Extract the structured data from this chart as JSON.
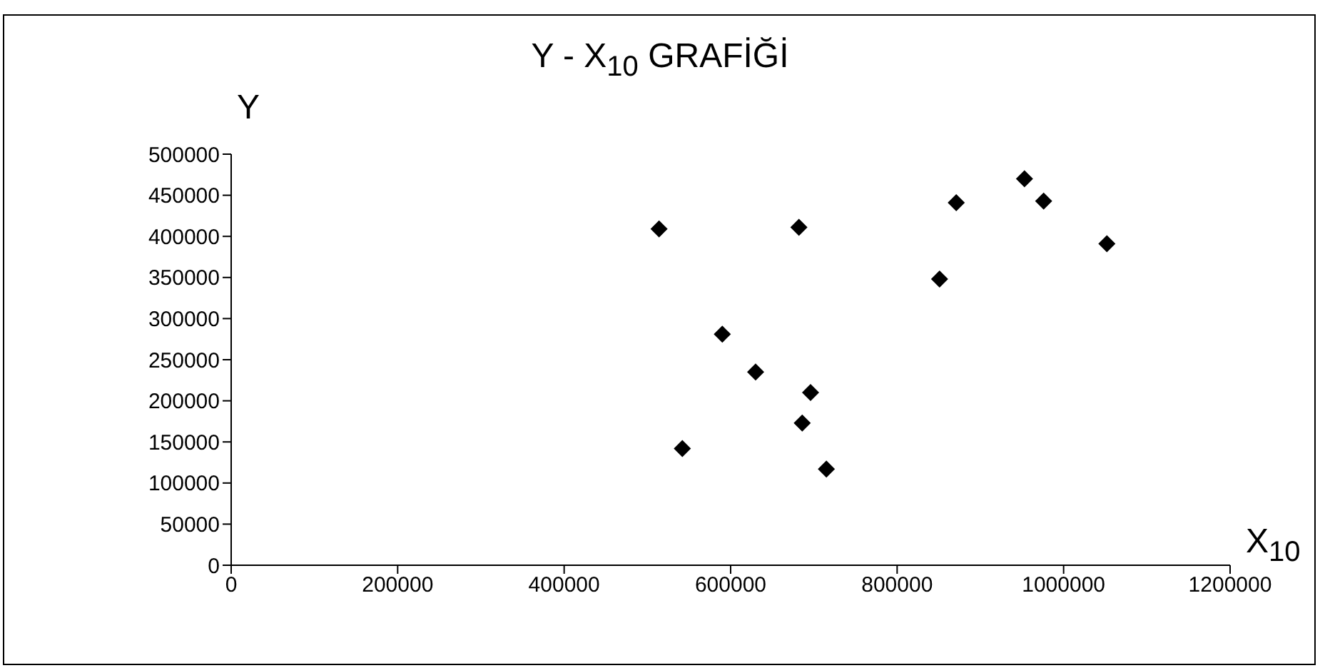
{
  "chart_data": {
    "type": "scatter",
    "title": "Y - X$_{10}$ GRAFİĞİ",
    "xlabel": "X$_{10}$",
    "ylabel": "Y",
    "x": [
      514000,
      590000,
      542000,
      682000,
      630000,
      696000,
      686000,
      715000,
      851000,
      871000,
      953000,
      976000,
      1052000
    ],
    "series": [
      {
        "color": "#000000",
        "values": [
          409000,
          281000,
          142000,
          411000,
          235000,
          210000,
          173000,
          117000,
          348000,
          441000,
          470000,
          443000,
          391000
        ]
      }
    ],
    "xlim": [
      0,
      1200000
    ],
    "xticks": [
      0,
      200000,
      400000,
      600000,
      800000,
      1000000,
      1200000
    ],
    "ylim": [
      0,
      500000
    ],
    "yticks": [
      0,
      50000,
      100000,
      150000,
      200000,
      250000,
      300000,
      350000,
      400000,
      450000,
      500000
    ],
    "marker": "diamond",
    "grid": false,
    "legend": false
  }
}
